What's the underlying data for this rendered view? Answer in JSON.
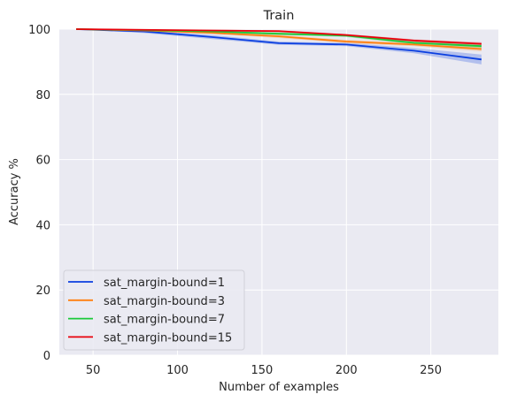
{
  "chart_data": {
    "type": "line",
    "title": "Train",
    "xlabel": "Number of examples",
    "ylabel": "Accuracy %",
    "xlim": [
      30,
      290
    ],
    "ylim": [
      0,
      100
    ],
    "x_ticks": [
      50,
      100,
      150,
      200,
      250
    ],
    "y_ticks": [
      0,
      20,
      40,
      60,
      80,
      100
    ],
    "grid": true,
    "legend_position": "lower-left",
    "x": [
      40,
      80,
      120,
      160,
      200,
      240,
      280
    ],
    "series": [
      {
        "name": "sat_margin-bound=1",
        "color": "#0b3fe0",
        "values": [
          100,
          99.3,
          97.6,
          95.7,
          95.3,
          93.4,
          90.7
        ],
        "lower": [
          100,
          98.8,
          97.0,
          95.2,
          94.8,
          92.6,
          89.2
        ],
        "upper": [
          100,
          99.7,
          98.2,
          96.2,
          95.8,
          94.2,
          92.2
        ]
      },
      {
        "name": "sat_margin-bound=3",
        "color": "#ff7f0e",
        "values": [
          100,
          99.6,
          98.9,
          97.8,
          96.2,
          95.3,
          93.9
        ],
        "lower": [
          100,
          99.3,
          98.5,
          97.3,
          95.7,
          94.8,
          93.2
        ],
        "upper": [
          100,
          99.9,
          99.3,
          98.3,
          96.7,
          95.8,
          94.6
        ]
      },
      {
        "name": "sat_margin-bound=7",
        "color": "#1ac938",
        "values": [
          100,
          99.7,
          99.3,
          98.6,
          98.0,
          95.8,
          94.8
        ],
        "lower": [
          100,
          99.5,
          99.0,
          98.2,
          97.6,
          95.3,
          94.2
        ],
        "upper": [
          100,
          99.9,
          99.6,
          99.0,
          98.4,
          96.3,
          95.4
        ]
      },
      {
        "name": "sat_margin-bound=15",
        "color": "#e8000b",
        "values": [
          100,
          99.8,
          99.6,
          99.4,
          98.2,
          96.5,
          95.5
        ],
        "lower": [
          100,
          99.6,
          99.4,
          99.1,
          97.9,
          96.1,
          95.0
        ],
        "upper": [
          100,
          99.9,
          99.8,
          99.7,
          98.5,
          96.9,
          96.0
        ]
      }
    ]
  }
}
